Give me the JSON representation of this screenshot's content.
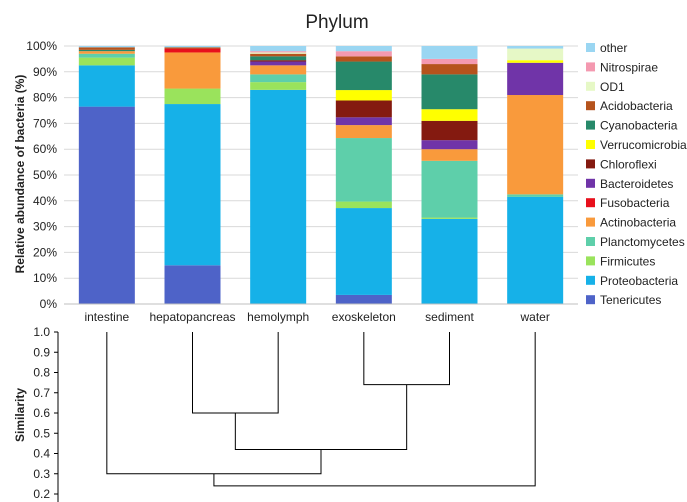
{
  "chart_data": [
    {
      "type": "bar",
      "stacked": true,
      "title": "Phylum",
      "xlabel": "",
      "ylabel": "Relative abundance of bacteria (%)",
      "ylim": [
        0,
        100
      ],
      "ytick_labels": [
        "0%",
        "10%",
        "20%",
        "30%",
        "40%",
        "50%",
        "60%",
        "70%",
        "80%",
        "90%",
        "100%"
      ],
      "grid": true,
      "legend_position": "right",
      "categories": [
        "intestine",
        "hepatopancreas",
        "hemolymph",
        "exoskeleton",
        "sediment",
        "water"
      ],
      "series": [
        {
          "name": "Tenericutes",
          "color": "#4e63c8",
          "values": [
            76.5,
            15.0,
            0.0,
            3.5,
            0.0,
            0.0
          ]
        },
        {
          "name": "Proteobacteria",
          "color": "#16b1e8",
          "values": [
            16.0,
            62.5,
            83.0,
            33.5,
            33.0,
            41.5
          ]
        },
        {
          "name": "Firmicutes",
          "color": "#9ae35c",
          "values": [
            3.0,
            6.0,
            3.0,
            2.5,
            0.5,
            0.0
          ]
        },
        {
          "name": "Planctomycetes",
          "color": "#5ecfaa",
          "values": [
            1.5,
            0.0,
            3.0,
            24.5,
            22.0,
            1.0
          ]
        },
        {
          "name": "Actinobacteria",
          "color": "#f99a3c",
          "values": [
            1.0,
            14.0,
            3.5,
            5.0,
            4.5,
            38.5
          ]
        },
        {
          "name": "Fusobacteria",
          "color": "#e8101c",
          "values": [
            0.0,
            1.5,
            0.0,
            0.0,
            0.0,
            0.0
          ]
        },
        {
          "name": "Bacteroidetes",
          "color": "#7034a8",
          "values": [
            0.0,
            0.0,
            1.5,
            3.0,
            3.5,
            12.5
          ]
        },
        {
          "name": "Chloroflexi",
          "color": "#841a10",
          "values": [
            0.0,
            0.0,
            0.5,
            6.5,
            7.5,
            0.0
          ]
        },
        {
          "name": "Verrucomicrobia",
          "color": "#ffff00",
          "values": [
            0.0,
            0.0,
            0.0,
            4.0,
            4.5,
            1.0
          ]
        },
        {
          "name": "Cyanobacteria",
          "color": "#27896a",
          "values": [
            0.5,
            0.0,
            1.5,
            11.0,
            13.5,
            0.0
          ]
        },
        {
          "name": "Acidobacteria",
          "color": "#b5531d",
          "values": [
            1.0,
            0.5,
            1.0,
            2.0,
            4.0,
            0.0
          ]
        },
        {
          "name": "OD1",
          "color": "#e6f8c6",
          "values": [
            0.0,
            0.0,
            0.5,
            0.0,
            0.0,
            4.5
          ]
        },
        {
          "name": "Nitrospirae",
          "color": "#f499b0",
          "values": [
            0.0,
            0.0,
            0.5,
            2.0,
            2.0,
            0.0
          ]
        },
        {
          "name": "other",
          "color": "#9ad6f2",
          "values": [
            0.5,
            0.5,
            2.0,
            2.0,
            5.0,
            1.0
          ]
        }
      ]
    },
    {
      "type": "dendrogram",
      "ylabel": "Similarity",
      "ylim": [
        0.2,
        1.0
      ],
      "ytick_labels": [
        "0.2",
        "0.3",
        "0.4",
        "0.5",
        "0.6",
        "0.7",
        "0.8",
        "0.9",
        "1.0"
      ],
      "leaves": [
        "intestine",
        "hepatopancreas",
        "hemolymph",
        "exoskeleton",
        "sediment",
        "water"
      ],
      "merges": [
        {
          "left": "hepatopancreas",
          "right": "hemolymph",
          "similarity": 0.6
        },
        {
          "left": "exoskeleton",
          "right": "sediment",
          "similarity": 0.74
        },
        {
          "left": "hepatopancreas+hemolymph",
          "right": "exoskeleton+sediment",
          "similarity": 0.42
        },
        {
          "left": "intestine",
          "right": "hepatopancreas+hemolymph+exoskeleton+sediment",
          "similarity": 0.3
        },
        {
          "left": "intestine+hepatopancreas+hemolymph+exoskeleton+sediment",
          "right": "water",
          "similarity": 0.24
        }
      ]
    }
  ]
}
